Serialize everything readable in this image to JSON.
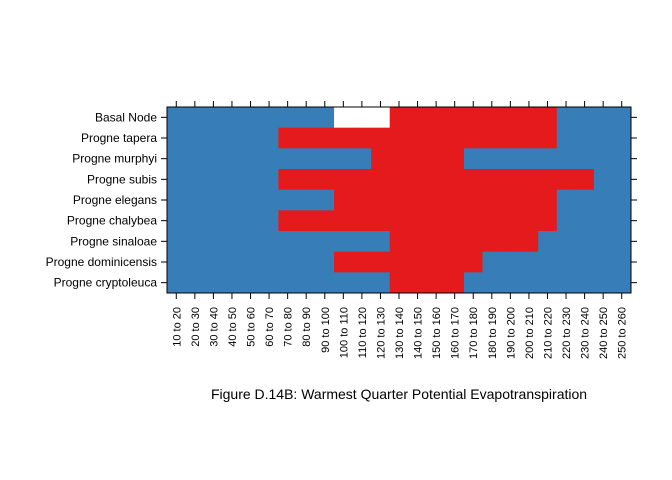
{
  "chart_data": {
    "type": "heatmap",
    "title": "Figure D.14B: Warmest Quarter Potential Evapotranspiration",
    "xlabel": "",
    "ylabel": "",
    "categories": [
      "10 to 20",
      "20 to 30",
      "30 to 40",
      "40 to 50",
      "50 to 60",
      "60 to 70",
      "70 to 80",
      "80 to 90",
      "90 to 100",
      "100 to 110",
      "110 to 120",
      "120 to 130",
      "130 to 140",
      "140 to 150",
      "150 to 160",
      "160 to 170",
      "170 to 180",
      "180 to 190",
      "190 to 200",
      "200 to 210",
      "210 to 220",
      "220 to 230",
      "230 to 240",
      "240 to 250",
      "250 to 260"
    ],
    "rows": [
      "Basal Node",
      "Progne tapera",
      "Progne murphyi",
      "Progne subis",
      "Progne elegans",
      "Progne chalybea",
      "Progne sinaloae",
      "Progne dominicensis",
      "Progne cryptoleuca"
    ],
    "colors": {
      "0": "#377eb8",
      "1": "#e41a1c",
      "2": "#ffffff"
    },
    "grid": false,
    "values": [
      [
        0,
        0,
        0,
        0,
        0,
        0,
        0,
        0,
        0,
        2,
        2,
        2,
        1,
        1,
        1,
        1,
        1,
        1,
        1,
        1,
        1,
        0,
        0,
        0,
        0
      ],
      [
        0,
        0,
        0,
        0,
        0,
        0,
        1,
        1,
        1,
        1,
        1,
        1,
        1,
        1,
        1,
        1,
        1,
        1,
        1,
        1,
        1,
        0,
        0,
        0,
        0
      ],
      [
        0,
        0,
        0,
        0,
        0,
        0,
        0,
        0,
        0,
        0,
        0,
        1,
        1,
        1,
        1,
        1,
        0,
        0,
        0,
        0,
        0,
        0,
        0,
        0,
        0
      ],
      [
        0,
        0,
        0,
        0,
        0,
        0,
        1,
        1,
        1,
        1,
        1,
        1,
        1,
        1,
        1,
        1,
        1,
        1,
        1,
        1,
        1,
        1,
        1,
        0,
        0
      ],
      [
        0,
        0,
        0,
        0,
        0,
        0,
        0,
        0,
        0,
        1,
        1,
        1,
        1,
        1,
        1,
        1,
        1,
        1,
        1,
        1,
        1,
        0,
        0,
        0,
        0
      ],
      [
        0,
        0,
        0,
        0,
        0,
        0,
        1,
        1,
        1,
        1,
        1,
        1,
        1,
        1,
        1,
        1,
        1,
        1,
        1,
        1,
        1,
        0,
        0,
        0,
        0
      ],
      [
        0,
        0,
        0,
        0,
        0,
        0,
        0,
        0,
        0,
        0,
        0,
        0,
        1,
        1,
        1,
        1,
        1,
        1,
        1,
        1,
        0,
        0,
        0,
        0,
        0
      ],
      [
        0,
        0,
        0,
        0,
        0,
        0,
        0,
        0,
        0,
        1,
        1,
        1,
        1,
        1,
        1,
        1,
        1,
        0,
        0,
        0,
        0,
        0,
        0,
        0,
        0
      ],
      [
        0,
        0,
        0,
        0,
        0,
        0,
        0,
        0,
        0,
        0,
        0,
        0,
        1,
        1,
        1,
        1,
        0,
        0,
        0,
        0,
        0,
        0,
        0,
        0,
        0
      ]
    ]
  }
}
